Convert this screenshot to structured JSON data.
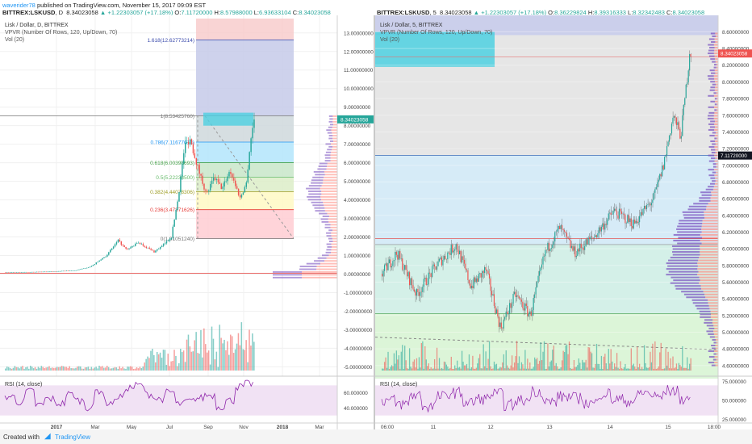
{
  "publish": {
    "user": "waverider78",
    "text": "published on TradingView.com, November 15, 2017 09:09 EST"
  },
  "left": {
    "header": {
      "symbol": "BITTREX:LSKUSD",
      "interval": "D",
      "last": "8.34023058",
      "change": "+1.22303057 (+17.18%)",
      "o": "7.11720000",
      "h": "8.57988000",
      "l": "6.93633104",
      "c": "8.34023058"
    },
    "legend": [
      "Lisk / Dollar, D, BITTREX",
      "VPVR (Number Of Rows, 120, Up/Down, 70)",
      "Vol (20)"
    ],
    "price_label": "8.34023058",
    "x_labels": [
      "2017",
      "Mar",
      "May",
      "Jul",
      "Sep",
      "Nov",
      "2018",
      "Mar"
    ],
    "rsi_title": "RSI (14, close)",
    "rsi_axis": [
      "60.000000",
      "40.000000"
    ]
  },
  "right": {
    "header": {
      "symbol": "BITTREX:LSKUSD",
      "interval": "5",
      "last": "8.34023058",
      "change": "+1.22303057 (+17.18%)",
      "o": "8.36229824",
      "h": "8.39316333",
      "l": "8.32342483",
      "c": "8.34023058"
    },
    "legend": [
      "Lisk / Dollar, 5, BITTREX",
      "VPVR (Number Of Rows, 120, Up/Down, 70)",
      "Vol (20)"
    ],
    "price_labels": [
      "8.34023058",
      "7.11720000"
    ],
    "x_labels": [
      "06:00",
      "11",
      "12",
      "13",
      "14",
      "15",
      "18:00"
    ],
    "rsi_title": "RSI (14, close)",
    "rsi_axis": [
      "75.000000",
      "50.000000",
      "25.000000"
    ]
  },
  "colors": {
    "up": "#26a69a",
    "down": "#ef5350",
    "vp_up": "#7e57c2",
    "vp_down": "#ff8a80",
    "rsi": "#8e24aa"
  },
  "chart_data": [
    {
      "type": "candlestick",
      "title": "Lisk / Dollar, D, BITTREX",
      "y_axis_ticks": [
        "13.00000000",
        "12.00000000",
        "11.00000000",
        "10.00000000",
        "9.00000000",
        "8.00000000",
        "7.00000000",
        "6.00000000",
        "5.00000000",
        "4.00000000",
        "3.00000000",
        "2.00000000",
        "1.00000000",
        "0.00000000",
        "-1.00000000",
        "-2.00000000",
        "-3.00000000",
        "-4.00000000",
        "-5.00000000"
      ],
      "ylim": [
        -5.2,
        13.6
      ],
      "fib_levels": [
        {
          "label": "1.618(12.62773214)",
          "value": 12.62773214
        },
        {
          "label": "1(8.53425760)",
          "value": 8.5342576
        },
        {
          "label": "0.786(7.11677613)",
          "value": 7.11677613
        },
        {
          "label": "0.618(6.00398693)",
          "value": 6.00398693
        },
        {
          "label": "0.5(5.22238500)",
          "value": 5.222385
        },
        {
          "label": "0.382(4.44078306)",
          "value": 4.44078306
        },
        {
          "label": "0.236(3.47371626)",
          "value": 3.47371626
        },
        {
          "label": "0(1.91051240)",
          "value": 1.9105124
        }
      ],
      "price_path": [
        {
          "x": "2017-01-01",
          "y": 0.1
        },
        {
          "x": "2017-02-01",
          "y": 0.11
        },
        {
          "x": "2017-03-01",
          "y": 0.14
        },
        {
          "x": "2017-04-01",
          "y": 0.2
        },
        {
          "x": "2017-04-20",
          "y": 0.4
        },
        {
          "x": "2017-05-10",
          "y": 1.0
        },
        {
          "x": "2017-05-25",
          "y": 1.8
        },
        {
          "x": "2017-06-05",
          "y": 1.3
        },
        {
          "x": "2017-06-20",
          "y": 1.7
        },
        {
          "x": "2017-07-10",
          "y": 1.2
        },
        {
          "x": "2017-07-20",
          "y": 1.5
        },
        {
          "x": "2017-08-01",
          "y": 2.0
        },
        {
          "x": "2017-08-10",
          "y": 4.2
        },
        {
          "x": "2017-08-18",
          "y": 6.9
        },
        {
          "x": "2017-08-25",
          "y": 7.3
        },
        {
          "x": "2017-09-05",
          "y": 5.6
        },
        {
          "x": "2017-09-15",
          "y": 4.3
        },
        {
          "x": "2017-09-25",
          "y": 5.2
        },
        {
          "x": "2017-10-05",
          "y": 4.6
        },
        {
          "x": "2017-10-15",
          "y": 5.6
        },
        {
          "x": "2017-10-28",
          "y": 4.1
        },
        {
          "x": "2017-11-05",
          "y": 4.9
        },
        {
          "x": "2017-11-10",
          "y": 7.1
        },
        {
          "x": "2017-11-15",
          "y": 8.34
        }
      ],
      "rsi_ylim": [
        20,
        80
      ],
      "rsi": [
        55,
        48,
        62,
        44,
        52,
        46,
        58,
        50,
        41,
        63,
        47,
        55,
        67,
        70,
        58,
        52,
        61,
        45,
        49,
        53,
        57,
        42,
        50,
        68,
        72
      ]
    },
    {
      "type": "candlestick",
      "title": "Lisk / Dollar, 5, BITTREX",
      "y_axis_ticks": [
        "8.60000000",
        "8.40000000",
        "8.20000000",
        "8.00000000",
        "7.80000000",
        "7.60000000",
        "7.40000000",
        "7.20000000",
        "7.00000000",
        "6.80000000",
        "6.60000000",
        "6.40000000",
        "6.20000000",
        "6.00000000",
        "5.80000000",
        "5.60000000",
        "5.40000000",
        "5.20000000",
        "5.00000000",
        "4.80000000",
        "4.60000000"
      ],
      "ylim": [
        4.54,
        8.72
      ],
      "price_path": [
        {
          "x": "2017-11-10T04:00",
          "y": 5.7
        },
        {
          "x": "2017-11-10T10:00",
          "y": 5.95
        },
        {
          "x": "2017-11-10T18:00",
          "y": 5.45
        },
        {
          "x": "2017-11-11T02:00",
          "y": 5.8
        },
        {
          "x": "2017-11-11T10:00",
          "y": 6.05
        },
        {
          "x": "2017-11-11T16:00",
          "y": 5.55
        },
        {
          "x": "2017-11-11T22:00",
          "y": 5.75
        },
        {
          "x": "2017-11-12T04:00",
          "y": 5.05
        },
        {
          "x": "2017-11-12T10:00",
          "y": 5.45
        },
        {
          "x": "2017-11-12T16:00",
          "y": 5.2
        },
        {
          "x": "2017-11-12T22:00",
          "y": 5.95
        },
        {
          "x": "2017-11-13T04:00",
          "y": 6.25
        },
        {
          "x": "2017-11-13T10:00",
          "y": 5.95
        },
        {
          "x": "2017-11-13T18:00",
          "y": 6.15
        },
        {
          "x": "2017-11-14T02:00",
          "y": 6.45
        },
        {
          "x": "2017-11-14T10:00",
          "y": 6.3
        },
        {
          "x": "2017-11-14T18:00",
          "y": 6.6
        },
        {
          "x": "2017-11-14T22:00",
          "y": 7.0
        },
        {
          "x": "2017-11-15T02:00",
          "y": 7.6
        },
        {
          "x": "2017-11-15T05:00",
          "y": 7.35
        },
        {
          "x": "2017-11-15T08:00",
          "y": 8.15
        },
        {
          "x": "2017-11-15T09:00",
          "y": 8.5
        },
        {
          "x": "2017-11-15T09:05",
          "y": 8.34
        }
      ],
      "rsi_ylim": [
        20,
        80
      ],
      "rsi": [
        50,
        45,
        57,
        42,
        55,
        60,
        47,
        52,
        58,
        44,
        50,
        62,
        48,
        55,
        53,
        46,
        59,
        51,
        49,
        60,
        55,
        63,
        52
      ]
    }
  ]
}
